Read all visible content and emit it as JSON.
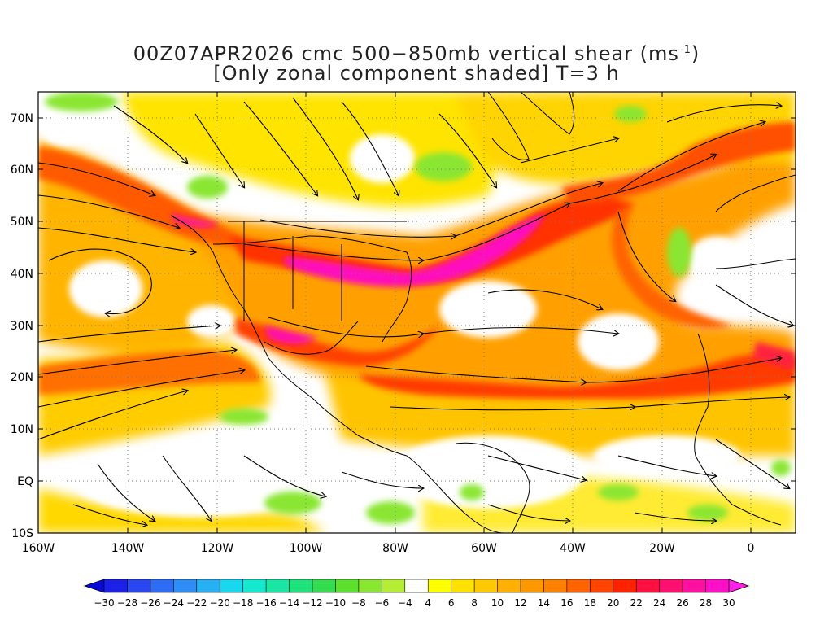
{
  "title": {
    "line1_pre": "00Z07APR2026 cmc 500−850mb vertical shear (ms",
    "line1_sup": "-1",
    "line1_post": ")",
    "line2": "[Only zonal component shaded] T=3 h"
  },
  "axes": {
    "lon_labels": [
      "160W",
      "140W",
      "120W",
      "100W",
      "80W",
      "60W",
      "40W",
      "20W",
      "0"
    ],
    "lat_labels": [
      "70N",
      "60N",
      "50N",
      "40N",
      "30N",
      "20N",
      "10N",
      "EQ",
      "10S"
    ]
  },
  "colorbar": {
    "labels": [
      "−30",
      "−28",
      "−26",
      "−24",
      "−22",
      "−20",
      "−18",
      "−16",
      "−14",
      "−12",
      "−10",
      "−8",
      "−6",
      "−4",
      "4",
      "6",
      "8",
      "10",
      "12",
      "14",
      "16",
      "18",
      "20",
      "22",
      "24",
      "26",
      "28",
      "30"
    ],
    "colors": [
      "#1a20e6",
      "#2a46f0",
      "#2f6cf4",
      "#2f8ef6",
      "#27b1f3",
      "#18d6ee",
      "#14e8cf",
      "#18e6a2",
      "#20e27a",
      "#34dc50",
      "#5ce02e",
      "#8ae630",
      "#b4ec36",
      "#ffffff",
      "#ffff00",
      "#ffe100",
      "#ffc800",
      "#ffb000",
      "#ff9800",
      "#ff8000",
      "#ff6400",
      "#ff4400",
      "#ff2200",
      "#ff1040",
      "#ff1070",
      "#ff10a0",
      "#ff10c8"
    ],
    "under_color": "#0a0ad8",
    "over_color": "#ff20e8"
  }
}
